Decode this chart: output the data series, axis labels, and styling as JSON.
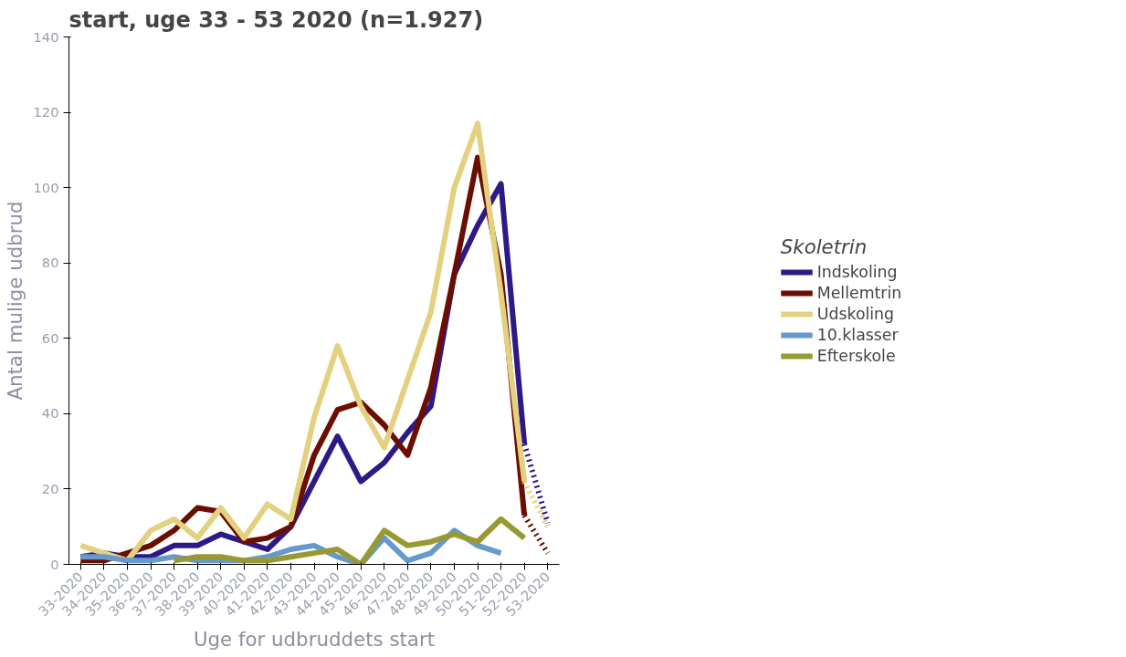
{
  "chart_data": {
    "type": "line",
    "title": "start, uge 33 - 53 2020 (n=1.927)",
    "xlabel": "Uge for udbruddets start",
    "ylabel": "Antal mulige udbrud",
    "legend_title": "Skoletrin",
    "legend": "right",
    "grid": false,
    "line_style": "solid",
    "categories": [
      "33-2020",
      "34-2020",
      "35-2020",
      "36-2020",
      "37-2020",
      "38-2020",
      "39-2020",
      "40-2020",
      "41-2020",
      "42-2020",
      "43-2020",
      "44-2020",
      "45-2020",
      "46-2020",
      "47-2020",
      "48-2020",
      "49-2020",
      "50-2020",
      "51-2020",
      "52-2020",
      "53-2020"
    ],
    "ylim": [
      0,
      140
    ],
    "yticks": [
      0,
      20,
      40,
      60,
      80,
      100,
      120,
      140
    ],
    "series": [
      {
        "name": "Indskoling",
        "color": "#2e1a87",
        "values": [
          2,
          3,
          2,
          2,
          5,
          5,
          8,
          6,
          4,
          10,
          22,
          34,
          22,
          27,
          35,
          42,
          77,
          90,
          101,
          32,
          null
        ]
      },
      {
        "name": "Mellemtrin",
        "color": "#6b0d00",
        "values": [
          1,
          1,
          3,
          5,
          9,
          15,
          14,
          6,
          7,
          10,
          29,
          41,
          43,
          37,
          29,
          47,
          77,
          108,
          77,
          13,
          null
        ]
      },
      {
        "name": "Udskoling",
        "color": "#e3d17f",
        "values": [
          5,
          3,
          1,
          9,
          12,
          7,
          15,
          7,
          16,
          12,
          39,
          58,
          42,
          31,
          49,
          67,
          100,
          117,
          72,
          22,
          null
        ]
      },
      {
        "name": "10.klasser",
        "color": "#6699cc",
        "values": [
          2,
          2,
          1,
          1,
          2,
          1,
          1,
          1,
          2,
          4,
          5,
          2,
          0,
          7,
          1,
          3,
          9,
          5,
          3,
          null,
          null
        ]
      },
      {
        "name": "Efterskole",
        "color": "#999933",
        "values": [
          null,
          null,
          null,
          null,
          1,
          2,
          2,
          1,
          1,
          2,
          3,
          4,
          0,
          9,
          5,
          6,
          8,
          6,
          12,
          7,
          null
        ]
      },
      {
        "color": "#2e1a87",
        "line_style": "dotted",
        "values": [
          null,
          null,
          null,
          null,
          null,
          null,
          null,
          null,
          null,
          null,
          null,
          null,
          null,
          null,
          null,
          null,
          null,
          null,
          null,
          32,
          11
        ]
      },
      {
        "color": "#6b0d00",
        "line_style": "dotted",
        "values": [
          null,
          null,
          null,
          null,
          null,
          null,
          null,
          null,
          null,
          null,
          null,
          null,
          null,
          null,
          null,
          null,
          null,
          null,
          null,
          13,
          3
        ]
      },
      {
        "color": "#e3d17f",
        "line_style": "dotted",
        "values": [
          null,
          null,
          null,
          null,
          null,
          null,
          null,
          null,
          null,
          null,
          null,
          null,
          null,
          null,
          null,
          null,
          null,
          null,
          null,
          22,
          10
        ]
      }
    ]
  }
}
